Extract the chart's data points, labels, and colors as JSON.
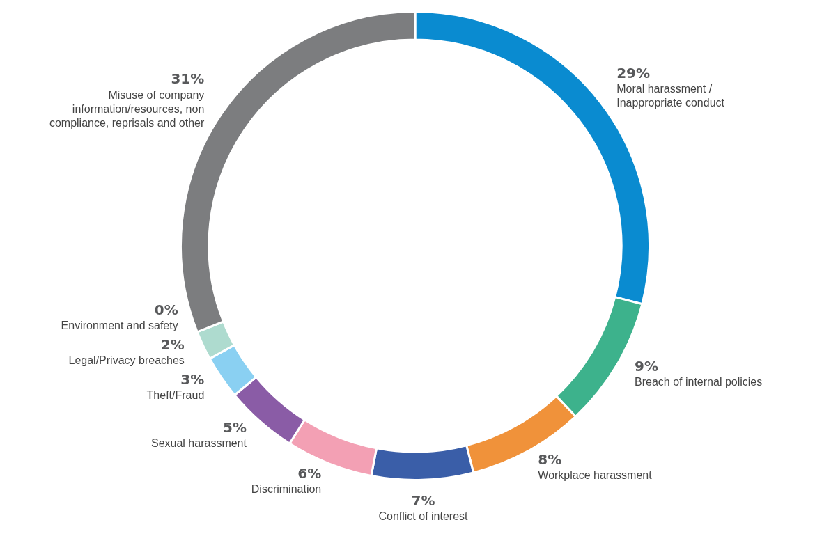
{
  "chart_data": {
    "type": "donut",
    "categories": [
      "Moral harassment / Inappropriate conduct",
      "Breach of internal policies",
      "Workplace harassment",
      "Conflict of interest",
      "Discrimination",
      "Sexual harassment",
      "Theft/Fraud",
      "Legal/Privacy breaches",
      "Environment and safety",
      "Misuse of company information/resources, non compliance, reprisals and other"
    ],
    "values": [
      29,
      9,
      8,
      7,
      6,
      5,
      3,
      2,
      0,
      31
    ],
    "colors": [
      "#0a8bd0",
      "#3db28c",
      "#f0923a",
      "#3a5ea8",
      "#f3a0b4",
      "#8a5ca6",
      "#8ad0f2",
      "#aedbcf",
      "#c9e9e0",
      "#7c7d7f"
    ],
    "value_labels": [
      "29%",
      "9%",
      "8%",
      "7%",
      "6%",
      "5%",
      "3%",
      "2%",
      "0%",
      "31%"
    ],
    "legend": false
  }
}
